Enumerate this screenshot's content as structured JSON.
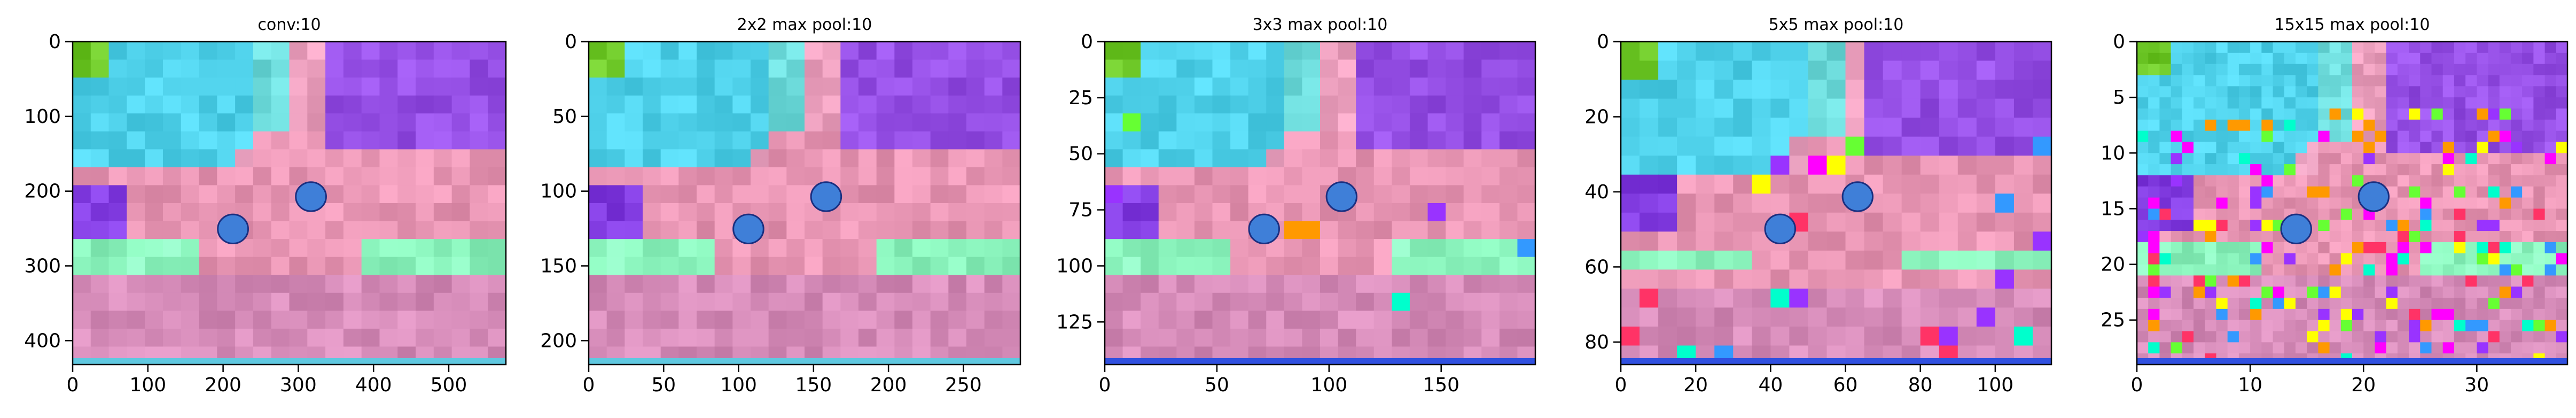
{
  "chart_data": [
    {
      "type": "heatmap",
      "title": "conv:10",
      "grid": false,
      "xlim": [
        0,
        576
      ],
      "ylim": [
        432,
        0
      ],
      "xticks": [
        0,
        100,
        200,
        300,
        400,
        500
      ],
      "yticks": [
        0,
        100,
        200,
        300,
        400
      ],
      "grid_cells": [
        24,
        18
      ]
    },
    {
      "type": "heatmap",
      "title": "2x2 max pool:10",
      "grid": false,
      "xlim": [
        0,
        288
      ],
      "ylim": [
        216,
        0
      ],
      "xticks": [
        0,
        50,
        100,
        150,
        200,
        250
      ],
      "yticks": [
        0,
        50,
        100,
        150,
        200
      ],
      "grid_cells": [
        24,
        18
      ]
    },
    {
      "type": "heatmap",
      "title": "3x3 max pool:10",
      "grid": false,
      "xlim": [
        0,
        192
      ],
      "ylim": [
        144,
        0
      ],
      "xticks": [
        0,
        50,
        100,
        150
      ],
      "yticks": [
        0,
        25,
        50,
        75,
        100,
        125
      ],
      "grid_cells": [
        24,
        18
      ]
    },
    {
      "type": "heatmap",
      "title": "5x5 max pool:10",
      "grid": false,
      "xlim": [
        0,
        115
      ],
      "ylim": [
        86,
        0
      ],
      "xticks": [
        0,
        20,
        40,
        60,
        80,
        100
      ],
      "yticks": [
        0,
        20,
        40,
        60,
        80
      ],
      "grid_cells": [
        23,
        17
      ]
    },
    {
      "type": "heatmap",
      "title": "15x15 max pool:10",
      "grid": false,
      "xlim": [
        0,
        38
      ],
      "ylim": [
        29,
        0
      ],
      "xticks": [
        0,
        10,
        20,
        30
      ],
      "yticks": [
        0,
        5,
        10,
        15,
        20,
        25
      ],
      "grid_cells": [
        38,
        29
      ]
    }
  ]
}
